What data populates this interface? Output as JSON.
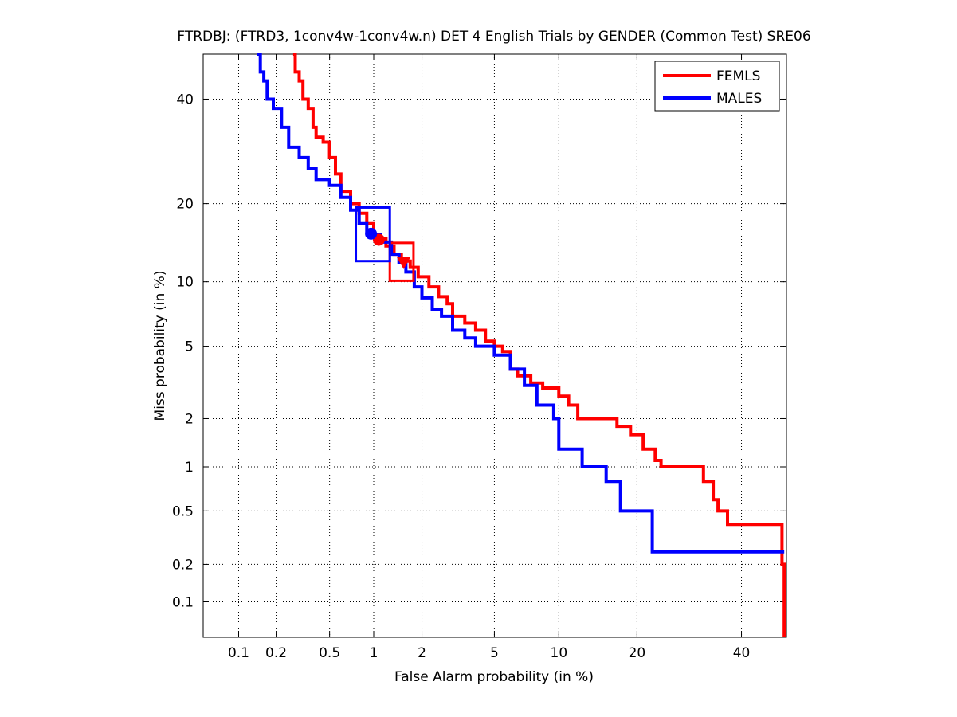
{
  "chart_data": {
    "type": "line",
    "title": "FTRDBJ: (FTRD3, 1conv4w-1conv4w.n) DET 4 English Trials by GENDER (Common Test) SRE06",
    "xlabel": "False Alarm probability (in %)",
    "ylabel": "Miss probability (in %)",
    "scale": "normal-deviate (probit) on both axes",
    "xlim": [
      0.05,
      50
    ],
    "ylim": [
      0.05,
      50
    ],
    "x_ticks": [
      0.1,
      0.2,
      0.5,
      1,
      2,
      5,
      10,
      20,
      40
    ],
    "x_tick_labels": [
      "0.1",
      "0.2",
      "0.5",
      "1",
      "2",
      "5",
      "10",
      "20",
      "40"
    ],
    "y_ticks": [
      0.1,
      0.2,
      0.5,
      1,
      2,
      5,
      10,
      20,
      40
    ],
    "y_tick_labels": [
      "0.1",
      "0.2",
      "0.5",
      "1",
      "2",
      "5",
      "10",
      "20",
      "40"
    ],
    "grid": true,
    "legend_position": "top-right",
    "series": [
      {
        "name": "FEMLS",
        "color": "#ff0000",
        "points": [
          [
            0.27,
            50
          ],
          [
            0.28,
            46
          ],
          [
            0.3,
            44
          ],
          [
            0.32,
            40
          ],
          [
            0.35,
            38
          ],
          [
            0.38,
            34
          ],
          [
            0.4,
            32
          ],
          [
            0.45,
            31
          ],
          [
            0.5,
            28
          ],
          [
            0.55,
            25
          ],
          [
            0.6,
            22
          ],
          [
            0.7,
            20
          ],
          [
            0.8,
            18.5
          ],
          [
            0.9,
            17
          ],
          [
            1.0,
            15.5
          ],
          [
            1.1,
            15
          ],
          [
            1.2,
            14
          ],
          [
            1.35,
            13
          ],
          [
            1.5,
            12.2
          ],
          [
            1.7,
            11.5
          ],
          [
            1.9,
            10.5
          ],
          [
            2.2,
            9.5
          ],
          [
            2.5,
            8.6
          ],
          [
            2.8,
            8
          ],
          [
            3.0,
            7
          ],
          [
            3.5,
            6.5
          ],
          [
            4.0,
            6
          ],
          [
            4.5,
            5.3
          ],
          [
            5.0,
            5
          ],
          [
            5.5,
            4.7
          ],
          [
            6.0,
            3.8
          ],
          [
            6.5,
            3.5
          ],
          [
            7.5,
            3.2
          ],
          [
            8.5,
            3
          ],
          [
            10,
            2.7
          ],
          [
            11,
            2.4
          ],
          [
            12,
            2
          ],
          [
            15,
            2
          ],
          [
            17,
            1.8
          ],
          [
            19,
            1.6
          ],
          [
            21,
            1.3
          ],
          [
            23,
            1.1
          ],
          [
            24,
            1
          ],
          [
            30,
            1
          ],
          [
            32,
            0.8
          ],
          [
            34,
            0.6
          ],
          [
            35,
            0.5
          ],
          [
            37,
            0.4
          ],
          [
            48,
            0.4
          ],
          [
            49,
            0.2
          ],
          [
            49.5,
            0.05
          ]
        ]
      },
      {
        "name": "MALES",
        "color": "#0000ff",
        "points": [
          [
            0.14,
            50
          ],
          [
            0.15,
            46
          ],
          [
            0.16,
            44
          ],
          [
            0.17,
            40
          ],
          [
            0.19,
            38
          ],
          [
            0.22,
            34
          ],
          [
            0.25,
            30
          ],
          [
            0.3,
            28
          ],
          [
            0.35,
            26
          ],
          [
            0.4,
            24
          ],
          [
            0.5,
            23
          ],
          [
            0.6,
            21
          ],
          [
            0.7,
            19
          ],
          [
            0.8,
            17
          ],
          [
            0.9,
            16
          ],
          [
            1.0,
            15.5
          ],
          [
            1.1,
            14.5
          ],
          [
            1.3,
            13
          ],
          [
            1.45,
            12
          ],
          [
            1.6,
            11
          ],
          [
            1.8,
            9.5
          ],
          [
            2.0,
            8.5
          ],
          [
            2.3,
            7.5
          ],
          [
            2.6,
            7
          ],
          [
            3.0,
            6
          ],
          [
            3.5,
            5.5
          ],
          [
            4.0,
            5
          ],
          [
            5.0,
            4.5
          ],
          [
            6.0,
            3.8
          ],
          [
            7.0,
            3.1
          ],
          [
            8.0,
            2.4
          ],
          [
            9.5,
            2
          ],
          [
            10,
            1.3
          ],
          [
            12,
            1.3
          ],
          [
            12.5,
            1
          ],
          [
            15,
            1
          ],
          [
            15.5,
            0.8
          ],
          [
            17,
            0.8
          ],
          [
            17.5,
            0.5
          ],
          [
            22,
            0.5
          ],
          [
            22.5,
            0.25
          ],
          [
            49.5,
            0.25
          ]
        ]
      }
    ],
    "operating_points": [
      {
        "series": "FEMLS",
        "marker": "circle",
        "x": 1.08,
        "y": 14.8
      },
      {
        "series": "FEMLS",
        "marker": "triangle",
        "x": 1.55,
        "y": 12.1
      },
      {
        "series": "MALES",
        "marker": "circle",
        "x": 0.96,
        "y": 15.6
      }
    ],
    "confidence_boxes": [
      {
        "series": "FEMLS",
        "x_range": [
          1.27,
          1.78
        ],
        "y_range": [
          10.1,
          14.4
        ]
      },
      {
        "series": "MALES",
        "x_range": [
          0.76,
          1.27
        ],
        "y_range": [
          12.2,
          19.4
        ]
      }
    ]
  }
}
